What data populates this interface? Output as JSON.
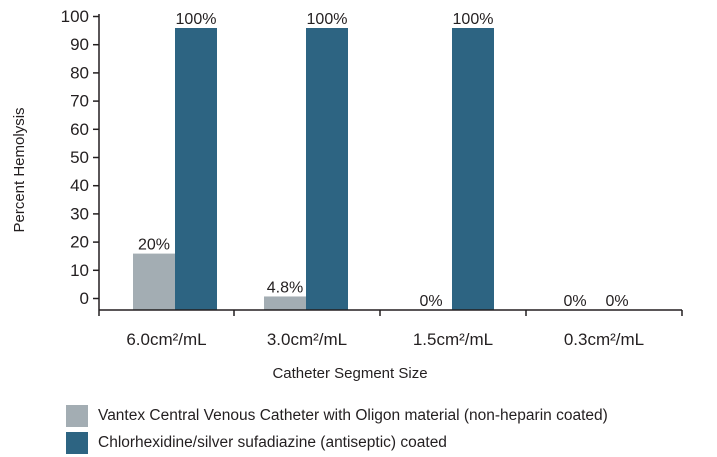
{
  "chart_data": {
    "type": "bar",
    "xlabel": "Catheter Segment Size",
    "ylabel": "Percent Hemolysis",
    "ylim": [
      0,
      100
    ],
    "yticks": [
      0,
      10,
      20,
      30,
      40,
      50,
      60,
      70,
      80,
      90,
      100
    ],
    "categories": [
      "6.0cm²/mL",
      "3.0cm²/mL",
      "1.5cm²/mL",
      "0.3cm²/mL"
    ],
    "series": [
      {
        "name": "Vantex Central Venous Catheter with Oligon material (non-heparin coated)",
        "color": "#a3adb3",
        "values": [
          20,
          4.8,
          0,
          0
        ],
        "labels": [
          "20%",
          "4.8%",
          "",
          "0%"
        ]
      },
      {
        "name": "Chlorhexidine/silver sufadiazine (antiseptic) coated",
        "color": "#2d6482",
        "values": [
          100,
          100,
          100,
          0
        ],
        "labels": [
          "100%",
          "100%",
          "100%",
          "0%"
        ]
      }
    ],
    "extra_labels": [
      "0%"
    ],
    "legend_position": "bottom",
    "grid": false
  }
}
